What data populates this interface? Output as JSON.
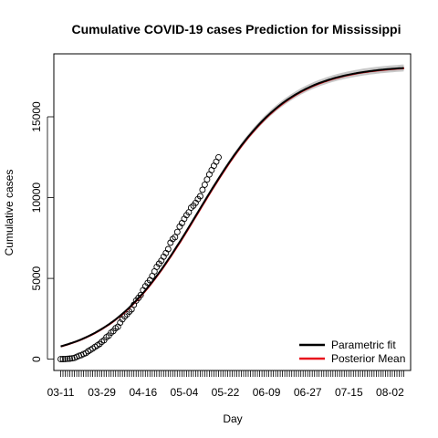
{
  "chart_data": {
    "type": "line",
    "title": "Cumulative COVID-19 cases Prediction for Mississippi",
    "xlabel": "Day",
    "ylabel": "Cumulative cases",
    "x_start_date": "2020-03-11",
    "x_end_day": 150,
    "observed_days": 70,
    "xlim": [
      -3,
      153
    ],
    "ylim": [
      -700,
      18900
    ],
    "x_ticks": [
      {
        "day": 0,
        "label": "03-11"
      },
      {
        "day": 18,
        "label": "03-29"
      },
      {
        "day": 36,
        "label": "04-16"
      },
      {
        "day": 54,
        "label": "05-04"
      },
      {
        "day": 72,
        "label": "05-22"
      },
      {
        "day": 90,
        "label": "06-09"
      },
      {
        "day": 108,
        "label": "06-27"
      },
      {
        "day": 126,
        "label": "07-15"
      },
      {
        "day": 144,
        "label": "08-02"
      }
    ],
    "y_ticks": [
      {
        "value": 0,
        "label": "0"
      },
      {
        "value": 5000,
        "label": "5000"
      },
      {
        "value": 10000,
        "label": "10000"
      },
      {
        "value": 15000,
        "label": "15000"
      }
    ],
    "model": {
      "type": "logistic",
      "K": 18200,
      "r": 0.0515,
      "midpoint_day": 60
    },
    "observed": {
      "name": "Observed",
      "points": [
        [
          0,
          1
        ],
        [
          1,
          6
        ],
        [
          2,
          10
        ],
        [
          3,
          21
        ],
        [
          4,
          34
        ],
        [
          5,
          50
        ],
        [
          6,
          80
        ],
        [
          7,
          140
        ],
        [
          8,
          207
        ],
        [
          9,
          249
        ],
        [
          10,
          320
        ],
        [
          11,
          377
        ],
        [
          12,
          485
        ],
        [
          13,
          579
        ],
        [
          14,
          663
        ],
        [
          15,
          758
        ],
        [
          16,
          847
        ],
        [
          17,
          937
        ],
        [
          18,
          1073
        ],
        [
          19,
          1177
        ],
        [
          20,
          1358
        ],
        [
          21,
          1455
        ],
        [
          22,
          1638
        ],
        [
          23,
          1738
        ],
        [
          24,
          1915
        ],
        [
          25,
          2003
        ],
        [
          26,
          2260
        ],
        [
          27,
          2469
        ],
        [
          28,
          2642
        ],
        [
          29,
          2781
        ],
        [
          30,
          2942
        ],
        [
          31,
          3087
        ],
        [
          32,
          3360
        ],
        [
          33,
          3624
        ],
        [
          34,
          3793
        ],
        [
          35,
          3974
        ],
        [
          36,
          4274
        ],
        [
          37,
          4512
        ],
        [
          38,
          4716
        ],
        [
          39,
          4894
        ],
        [
          40,
          5153
        ],
        [
          41,
          5434
        ],
        [
          42,
          5718
        ],
        [
          43,
          5911
        ],
        [
          44,
          6094
        ],
        [
          45,
          6342
        ],
        [
          46,
          6569
        ],
        [
          47,
          6815
        ],
        [
          48,
          7210
        ],
        [
          49,
          7441
        ],
        [
          50,
          7550
        ],
        [
          51,
          7877
        ],
        [
          52,
          8207
        ],
        [
          53,
          8424
        ],
        [
          54,
          8686
        ],
        [
          55,
          8916
        ],
        [
          56,
          9090
        ],
        [
          57,
          9378
        ],
        [
          58,
          9501
        ],
        [
          59,
          9674
        ],
        [
          60,
          9908
        ],
        [
          61,
          10090
        ],
        [
          62,
          10483
        ],
        [
          63,
          10801
        ],
        [
          64,
          11123
        ],
        [
          65,
          11432
        ],
        [
          66,
          11704
        ],
        [
          67,
          11967
        ],
        [
          68,
          12222
        ],
        [
          69,
          12493
        ]
      ]
    },
    "series": [
      {
        "name": "Parametric fit",
        "color": "#000000"
      },
      {
        "name": "Posterior Mean",
        "color": "#e8141c"
      }
    ],
    "band": {
      "name": "Credible band",
      "color": "#c8c8c8"
    },
    "legend_position": "bottom-right"
  }
}
